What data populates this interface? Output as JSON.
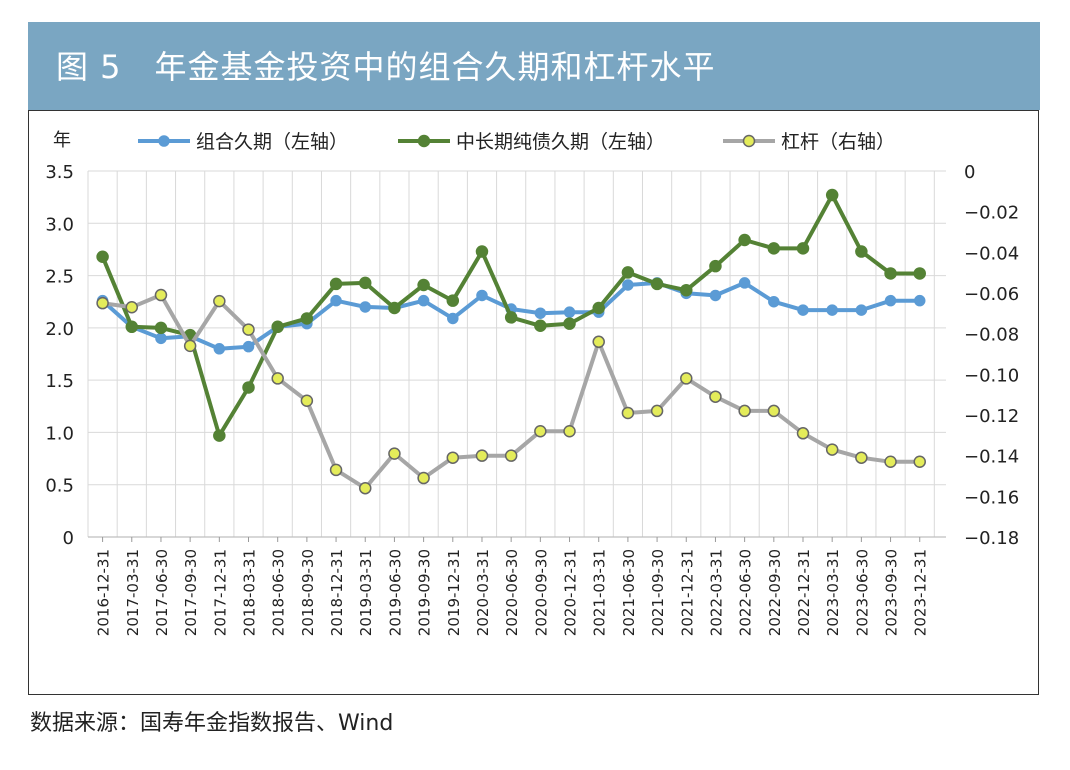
{
  "header": {
    "title": "图 5　年金基金投资中的组合久期和杠杆水平"
  },
  "source": "数据来源：国寿年金指数报告、Wind",
  "colors": {
    "header_bg": "#7aa6c2",
    "portfolio": "#5b9bd5",
    "long_bond": "#548235",
    "leverage_line": "#a6a6a6",
    "leverage_marker": "#e4ec5a"
  },
  "chart_data": {
    "type": "line",
    "title": "年金基金投资中的组合久期和杠杆水平",
    "ylabel_left": "年",
    "ylim_left": [
      0,
      3.5
    ],
    "ylim_right": [
      -0.18,
      0
    ],
    "left_ticks": [
      "0",
      "0.5",
      "1.0",
      "1.5",
      "2.0",
      "2.5",
      "3.0",
      "3.5"
    ],
    "right_ticks": [
      "−0.18",
      "−0.16",
      "−0.14",
      "−0.12",
      "−0.10",
      "−0.08",
      "−0.06",
      "−0.04",
      "−0.02",
      "0"
    ],
    "categories": [
      "2016-12-31",
      "2017-03-31",
      "2017-06-30",
      "2017-09-30",
      "2017-12-31",
      "2018-03-31",
      "2018-06-30",
      "2018-09-30",
      "2018-12-31",
      "2019-03-31",
      "2019-06-30",
      "2019-09-30",
      "2019-12-31",
      "2020-03-31",
      "2020-06-30",
      "2020-09-30",
      "2020-12-31",
      "2021-03-31",
      "2021-06-30",
      "2021-09-30",
      "2021-12-31",
      "2022-03-31",
      "2022-06-30",
      "2022-09-30",
      "2022-12-31",
      "2023-03-31",
      "2023-06-30",
      "2023-09-30",
      "2023-12-31"
    ],
    "series": [
      {
        "name": "组合久期（左轴）",
        "axis": "left",
        "values": [
          2.26,
          2.01,
          1.9,
          1.92,
          1.8,
          1.82,
          2.01,
          2.04,
          2.26,
          2.2,
          2.19,
          2.26,
          2.09,
          2.31,
          2.18,
          2.14,
          2.15,
          2.15,
          2.41,
          2.43,
          2.33,
          2.31,
          2.43,
          2.25,
          2.17,
          2.17,
          2.17,
          2.26,
          2.26
        ]
      },
      {
        "name": "中长期纯债久期（左轴）",
        "axis": "left",
        "values": [
          2.68,
          2.01,
          2.0,
          1.93,
          0.97,
          1.43,
          2.01,
          2.09,
          2.42,
          2.43,
          2.19,
          2.41,
          2.26,
          2.73,
          2.1,
          2.02,
          2.04,
          2.19,
          2.53,
          2.42,
          2.36,
          2.59,
          2.84,
          2.76,
          2.76,
          3.27,
          2.73,
          2.52,
          2.52
        ]
      },
      {
        "name": "杠杆（右轴）",
        "axis": "right",
        "values": [
          -0.065,
          -0.067,
          -0.061,
          -0.086,
          -0.064,
          -0.078,
          -0.102,
          -0.113,
          -0.147,
          -0.156,
          -0.139,
          -0.151,
          -0.141,
          -0.14,
          -0.14,
          -0.128,
          -0.128,
          -0.084,
          -0.119,
          -0.118,
          -0.102,
          -0.111,
          -0.118,
          -0.118,
          -0.129,
          -0.137,
          -0.141,
          -0.143,
          -0.143
        ]
      }
    ]
  }
}
